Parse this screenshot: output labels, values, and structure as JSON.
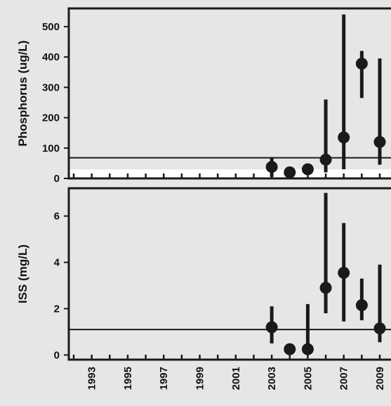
{
  "chart_data": [
    {
      "type": "scatter",
      "title": "",
      "xlabel": "",
      "ylabel": "Phosphorus (ug/L)",
      "ylim": [
        0,
        560
      ],
      "yticks": [
        0,
        100,
        200,
        300,
        400,
        500
      ],
      "reference_line": 68,
      "white_band": [
        0,
        30
      ],
      "points": [
        {
          "year": 2003,
          "value": 38,
          "low": 5,
          "high": 70
        },
        {
          "year": 2004,
          "value": 20,
          "low": 15,
          "high": 25
        },
        {
          "year": 2005,
          "value": 30,
          "low": 25,
          "high": 35
        },
        {
          "year": 2006,
          "value": 62,
          "low": 20,
          "high": 260
        },
        {
          "year": 2007,
          "value": 135,
          "low": 30,
          "high": 540
        },
        {
          "year": 2008,
          "value": 378,
          "low": 265,
          "high": 420
        },
        {
          "year": 2009,
          "value": 120,
          "low": 45,
          "high": 395
        }
      ]
    },
    {
      "type": "scatter",
      "title": "",
      "xlabel": "",
      "ylabel": "ISS (mg/L)",
      "ylim": [
        -0.2,
        7.2
      ],
      "yticks": [
        0,
        2,
        4,
        6
      ],
      "reference_line": 1.1,
      "points": [
        {
          "year": 2003,
          "value": 1.2,
          "low": 0.5,
          "high": 2.1
        },
        {
          "year": 2004,
          "value": 0.25,
          "low": 0.2,
          "high": 0.3
        },
        {
          "year": 2005,
          "value": 0.25,
          "low": 0.0,
          "high": 2.2
        },
        {
          "year": 2006,
          "value": 2.9,
          "low": 1.8,
          "high": 7.0
        },
        {
          "year": 2007,
          "value": 3.55,
          "low": 1.45,
          "high": 5.7
        },
        {
          "year": 2008,
          "value": 2.15,
          "low": 1.5,
          "high": 3.3
        },
        {
          "year": 2009,
          "value": 1.15,
          "low": 0.55,
          "high": 3.9
        }
      ]
    }
  ],
  "x_axis": {
    "tick_years": [
      1992,
      1993,
      1994,
      1995,
      1996,
      1997,
      1998,
      1999,
      2000,
      2001,
      2002,
      2003,
      2004,
      2005,
      2006,
      2007,
      2008,
      2009
    ],
    "labels": [
      "1993",
      "1995",
      "1997",
      "1999",
      "2001",
      "2003",
      "2005",
      "2007",
      "2009"
    ]
  },
  "colors": {
    "background": "#e6e6e6",
    "marker": "#1a1a1a",
    "white_band": "#ffffff"
  }
}
